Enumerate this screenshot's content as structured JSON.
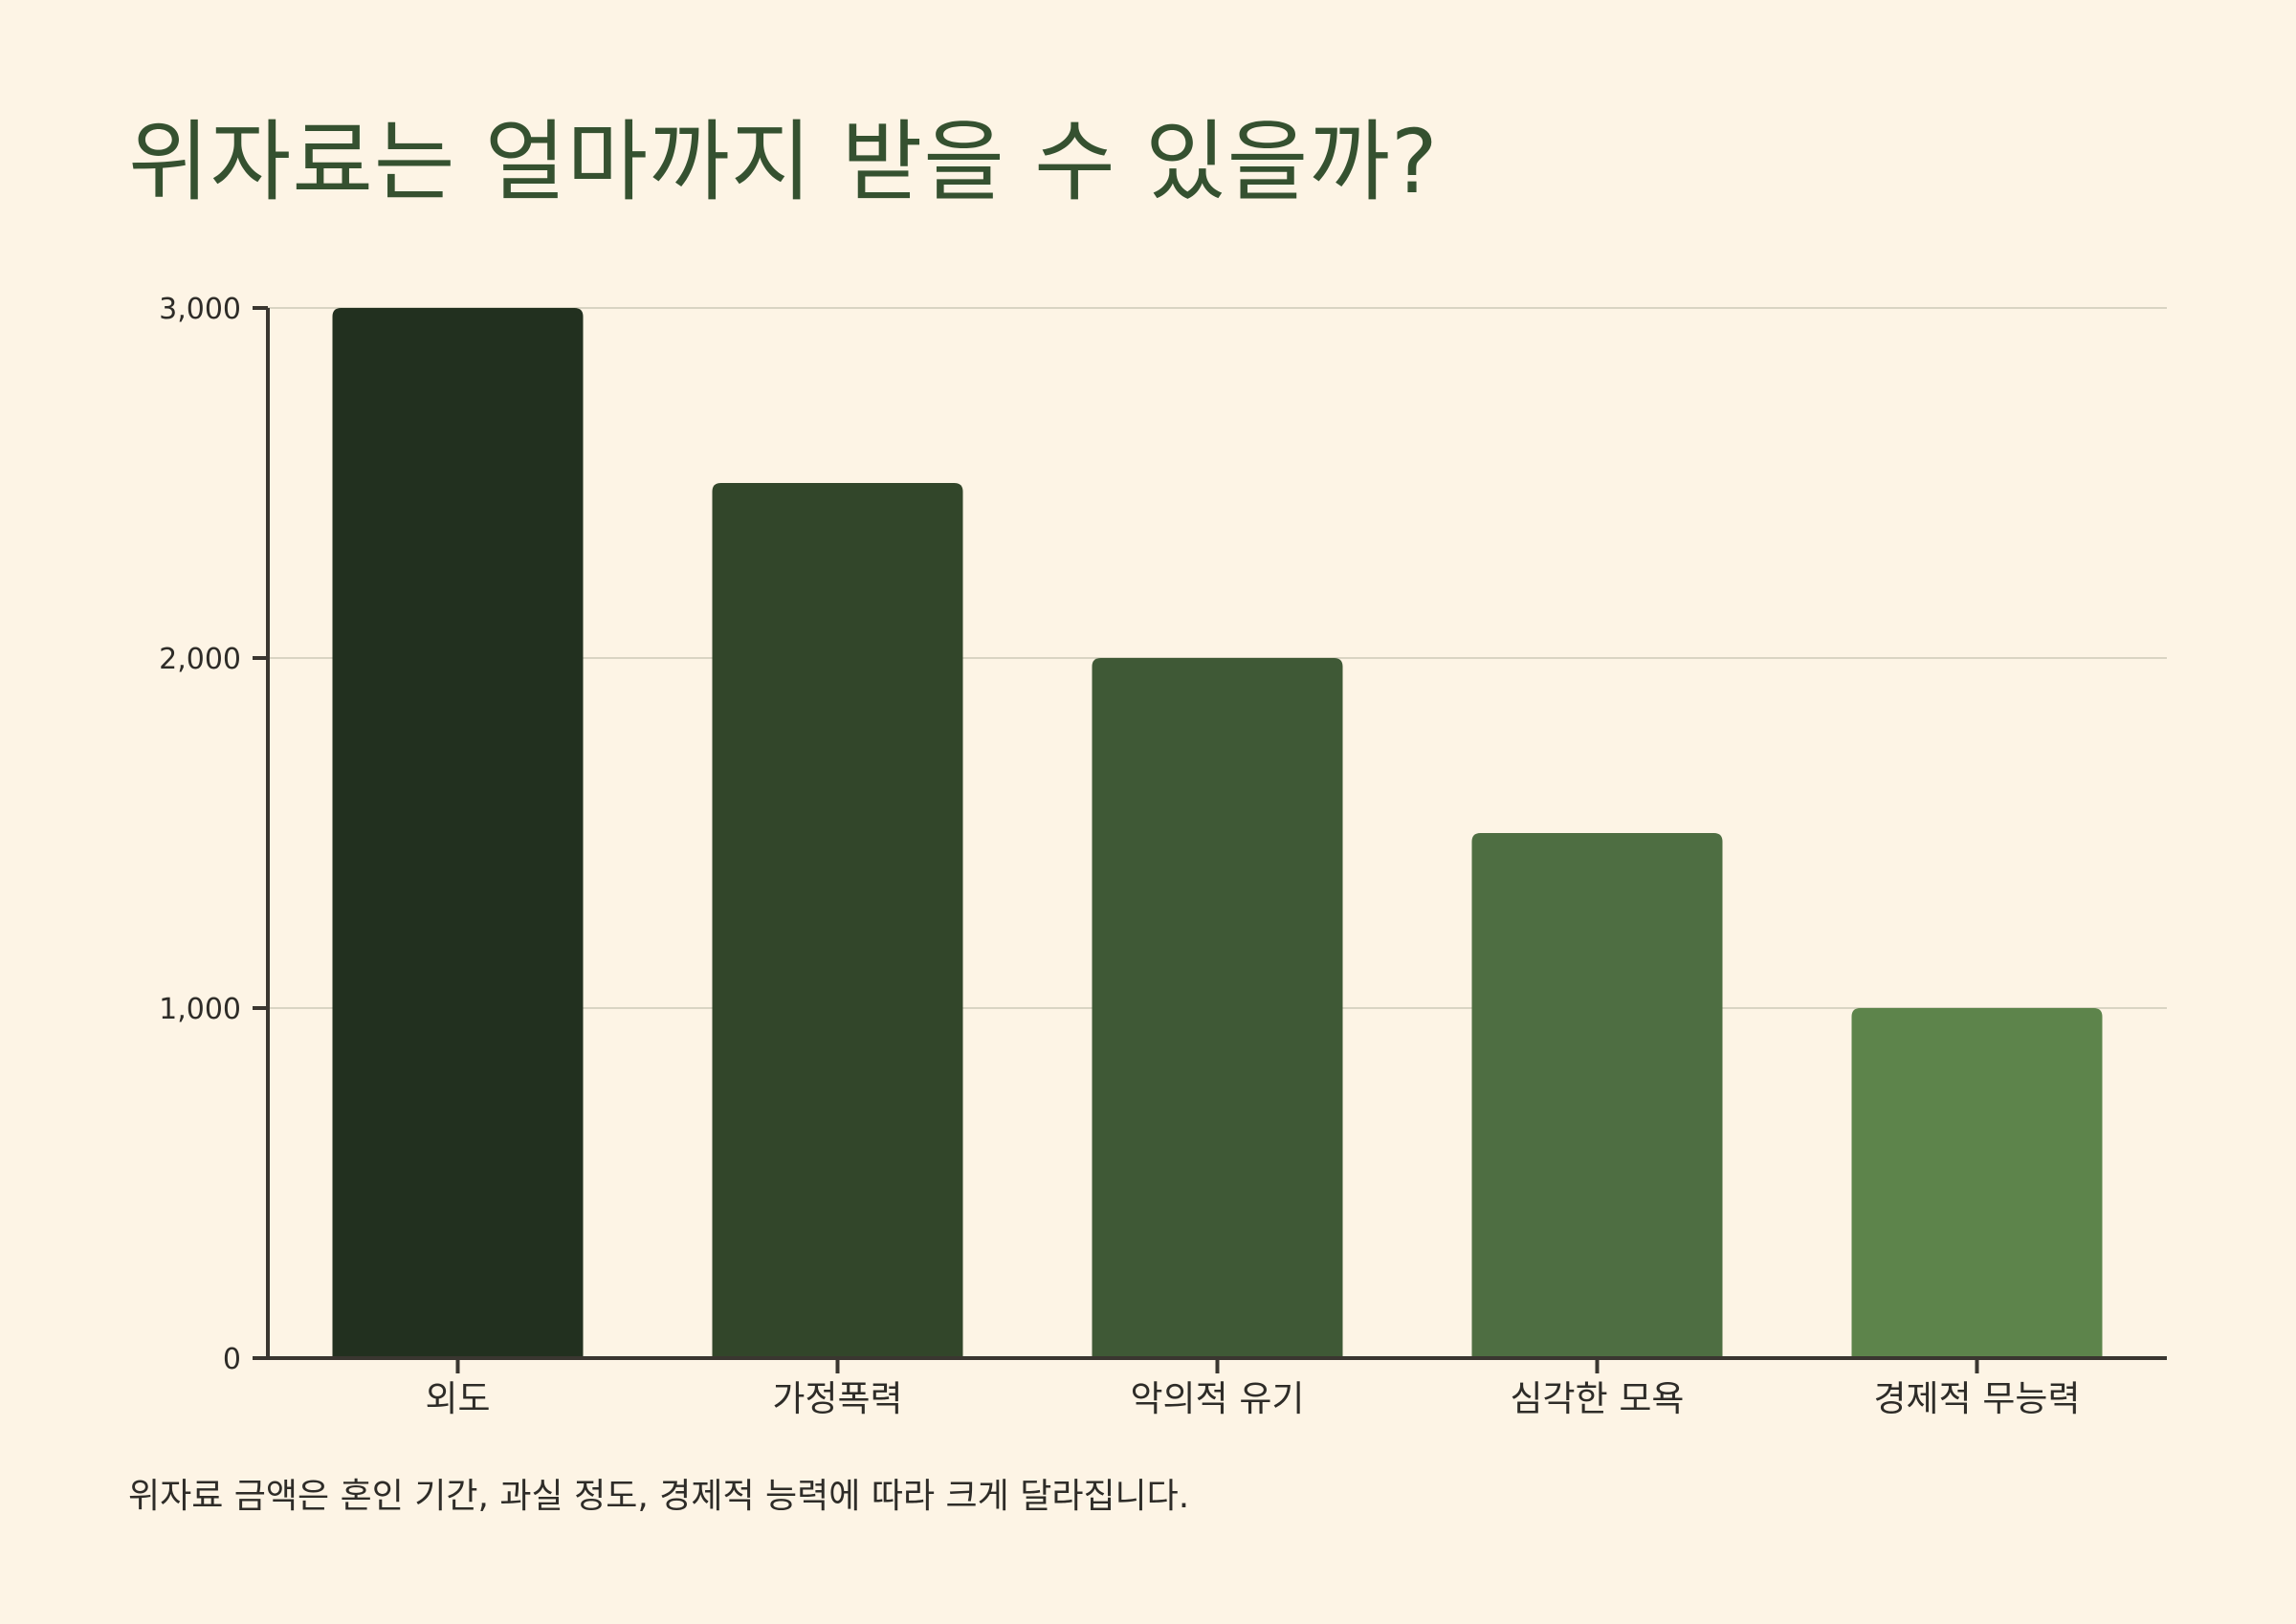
{
  "title": "위자료는 얼마까지 받을 수 있을까?",
  "caption": "위자료 금액은 혼인 기간, 과실 정도, 경제적 능력에 따라 크게 달라집니다.",
  "colors": {
    "background": "#fdf4e5",
    "title": "#355130",
    "axis": "#3a3630",
    "grid": "#d9d4c3",
    "bars": [
      "#22301f",
      "#32462a",
      "#3f5936",
      "#4e6e42",
      "#5d844b"
    ]
  },
  "chart_data": {
    "type": "bar",
    "title": "위자료는 얼마까지 받을 수 있을까?",
    "xlabel": "",
    "ylabel": "",
    "categories": [
      "외도",
      "가정폭력",
      "악의적 유기",
      "심각한 모욕",
      "경제적 무능력"
    ],
    "values": [
      3000,
      2500,
      2000,
      1500,
      1000
    ],
    "ylim": [
      0,
      3000
    ],
    "yticks": [
      0,
      1000,
      2000,
      3000
    ],
    "ytick_labels": [
      "0",
      "1,000",
      "2,000",
      "3,000"
    ],
    "grid": true,
    "legend": "none"
  }
}
